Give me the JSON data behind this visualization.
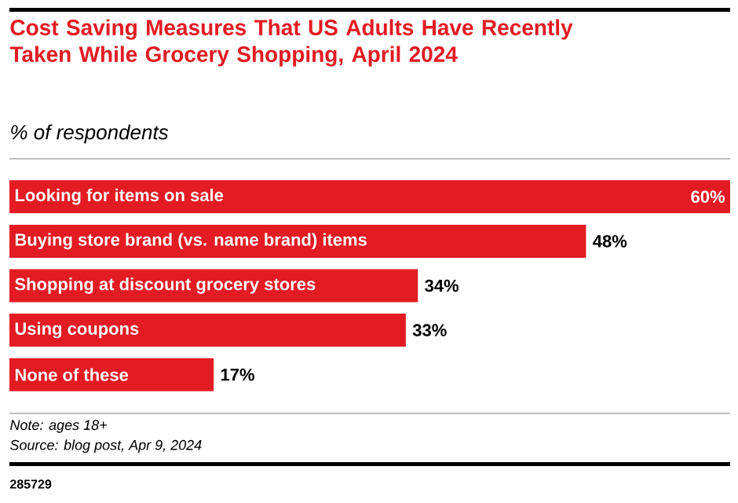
{
  "chart_data": {
    "type": "bar",
    "orientation": "horizontal",
    "title": "Cost Saving Measures That US Adults Have Recently Taken While Grocery Shopping, April 2024",
    "subtitle": "% of respondents",
    "categories": [
      "Looking for items on sale",
      "Buying store brand (vs. name brand) items",
      "Shopping at discount grocery stores",
      "Using coupons",
      "None of these"
    ],
    "values": [
      60,
      48,
      34,
      33,
      17
    ],
    "value_labels": [
      "60%",
      "48%",
      "34%",
      "33%",
      "17%"
    ],
    "color": "#e31b23",
    "annotations": [
      "Note: ages 18+",
      "Source: blog post, Apr 9, 2024",
      "285729"
    ]
  }
}
